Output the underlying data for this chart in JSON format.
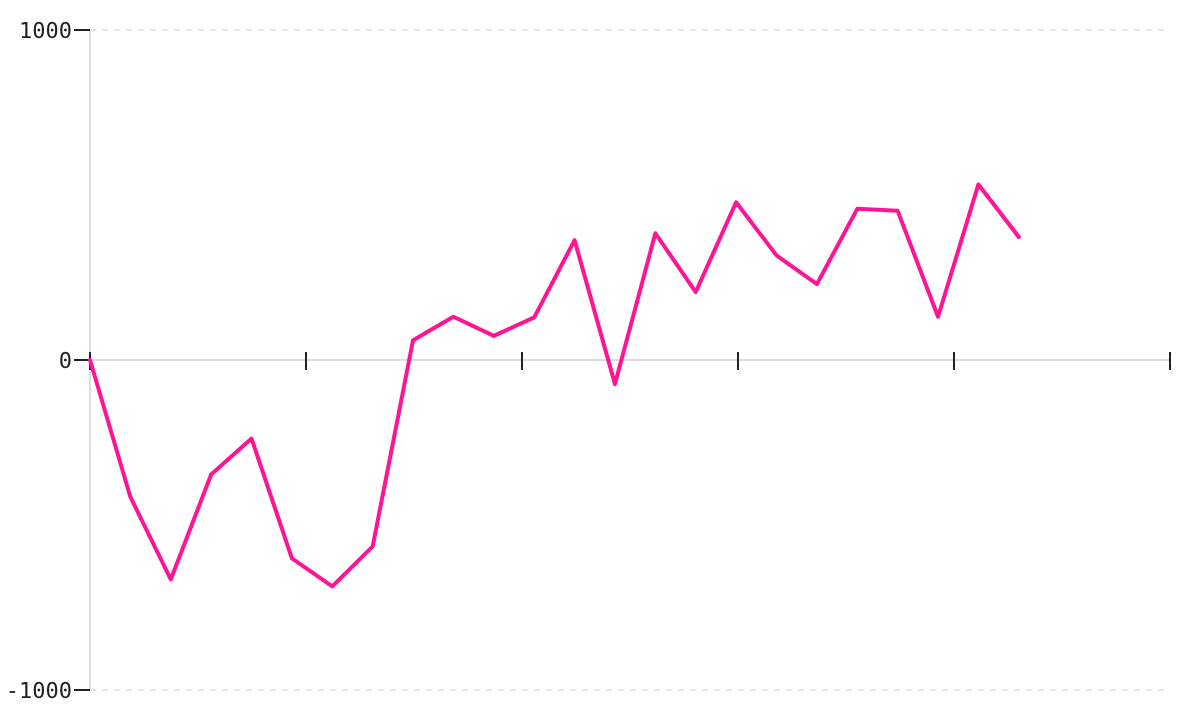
{
  "chart_data": {
    "type": "line",
    "categories": [
      null,
      null,
      null,
      null,
      null,
      null,
      null,
      null,
      null,
      null,
      null,
      null,
      null,
      null,
      null,
      null,
      null,
      null,
      null,
      null,
      null,
      null,
      null,
      null
    ],
    "series": [
      {
        "color": "#ff1493",
        "values": [
          0,
          -415,
          -665,
          -347,
          -238,
          -601,
          -686,
          -565,
          60,
          131,
          73,
          129,
          363,
          -73,
          384,
          206,
          478,
          317,
          230,
          458,
          452,
          131,
          532,
          373
        ]
      }
    ],
    "ylim": [
      -1000,
      1000
    ],
    "yticks": [
      -1000,
      0,
      1000
    ],
    "grid": "y",
    "tick_labels": "y",
    "marker": "none",
    "line_style": "solid"
  }
}
